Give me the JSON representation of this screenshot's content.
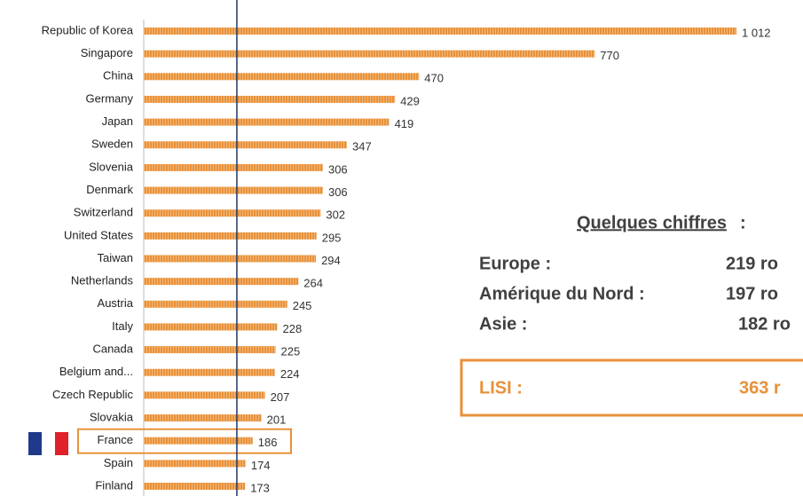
{
  "chart_data": {
    "type": "bar",
    "orientation": "horizontal",
    "categories": [
      "Republic of Korea",
      "Singapore",
      "China",
      "Germany",
      "Japan",
      "Sweden",
      "Slovenia",
      "Denmark",
      "Switzerland",
      "United States",
      "Taiwan",
      "Netherlands",
      "Austria",
      "Italy",
      "Canada",
      "Belgium and...",
      "Czech Republic",
      "Slovakia",
      "France",
      "Spain",
      "Finland"
    ],
    "values": [
      1012,
      770,
      470,
      429,
      419,
      347,
      306,
      306,
      302,
      295,
      294,
      264,
      245,
      228,
      225,
      224,
      207,
      201,
      186,
      174,
      173
    ],
    "value_labels": [
      "1 012",
      "770",
      "470",
      "429",
      "419",
      "347",
      "306",
      "306",
      "302",
      "295",
      "294",
      "264",
      "245",
      "228",
      "225",
      "224",
      "207",
      "201",
      "186",
      "174",
      "173"
    ],
    "color": "#e8913a",
    "xlim": [
      0,
      1012
    ],
    "highlight_index": 18,
    "highlight_color": "#e8913a",
    "reference_line": 159,
    "reference_color": "#1f3864"
  },
  "annotations": {
    "heading": "Quelques chiffres",
    "heading_suffix": " :",
    "rows": [
      {
        "label": "Europe :",
        "value": "219 ro"
      },
      {
        "label": "Amérique du Nord :",
        "value": "197 ro"
      },
      {
        "label": "Asie :",
        "value": "182 ro"
      }
    ],
    "lisi": {
      "label": "LISI :",
      "value": "363 r"
    }
  }
}
